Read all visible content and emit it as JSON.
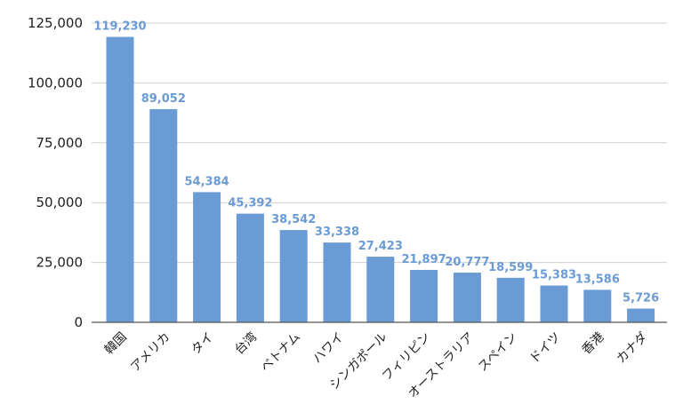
{
  "colors": {
    "bar": "#6b9bd5",
    "data_label": "#6b9bd5",
    "grid": "#d0d0d0",
    "axis": "#555555",
    "text": "#222222"
  },
  "chart_data": {
    "type": "bar",
    "title": "",
    "xlabel": "",
    "ylabel": "",
    "categories": [
      "韓国",
      "アメリカ",
      "タイ",
      "台湾",
      "ベトナム",
      "ハワイ",
      "シンガポール",
      "フィリピン",
      "オーストラリア",
      "スペイン",
      "ドイツ",
      "香港",
      "カナダ"
    ],
    "values": [
      119230,
      89052,
      54384,
      45392,
      38542,
      33338,
      27423,
      21897,
      20777,
      18599,
      15383,
      13586,
      5726
    ],
    "value_labels": [
      "119,230",
      "89,052",
      "54,384",
      "45,392",
      "38,542",
      "33,338",
      "27,423",
      "21,897",
      "20,777",
      "18,599",
      "15,383",
      "13,586",
      "5,726"
    ],
    "ylim": [
      0,
      125000
    ],
    "yticks": [
      0,
      25000,
      50000,
      75000,
      100000,
      125000
    ],
    "ytick_labels": [
      "0",
      "25,000",
      "50,000",
      "75,000",
      "100,000",
      "125,000"
    ],
    "grid": true,
    "legend": "none",
    "x_label_rotation": "-45deg"
  }
}
